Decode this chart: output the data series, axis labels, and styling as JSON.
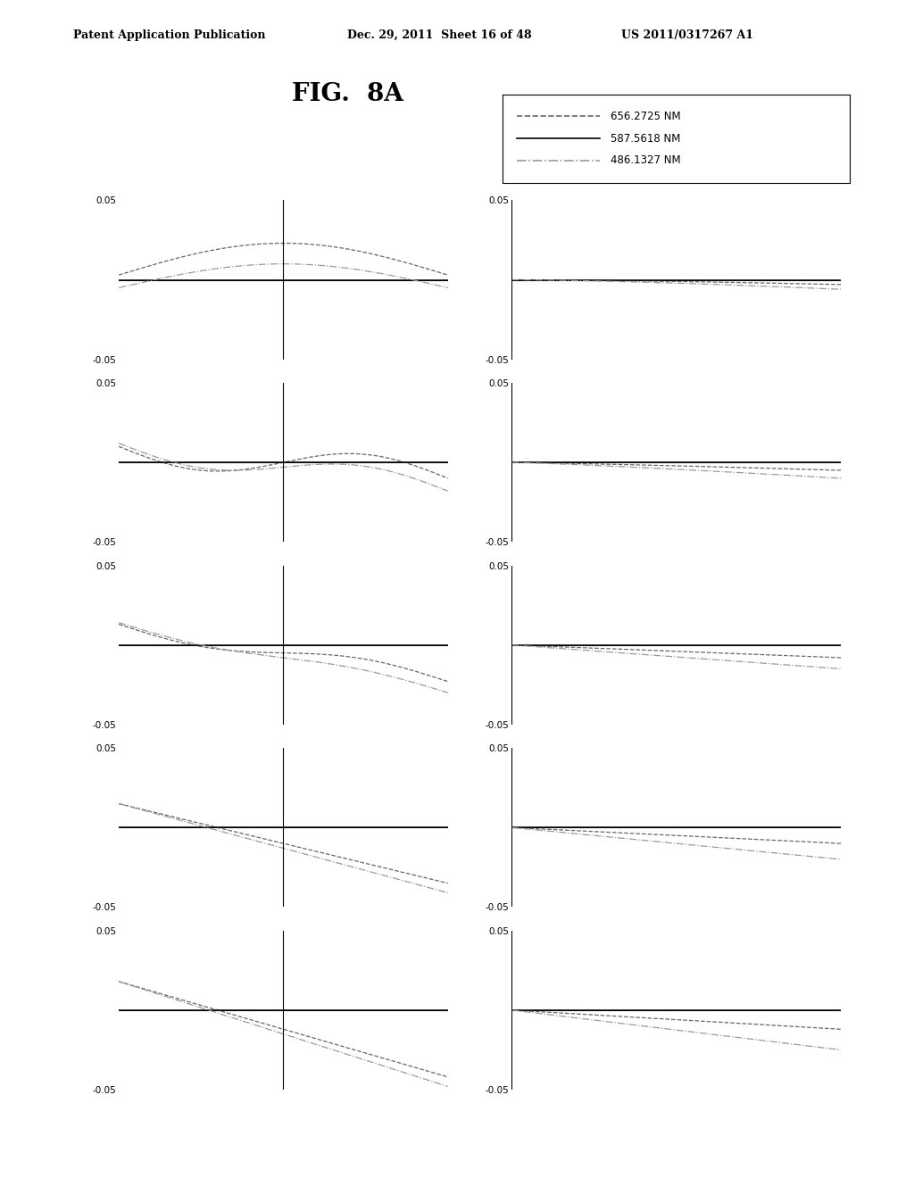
{
  "title": "FIG.  8A",
  "header_left": "Patent Application Publication",
  "header_center": "Dec. 29, 2011  Sheet 16 of 48",
  "header_right": "US 2011/0317267 A1",
  "legend_labels": [
    "656.2725 NM",
    "587.5618 NM",
    "486.1327 NM"
  ],
  "legend_styles": [
    "dashed",
    "solid",
    "dashdot"
  ],
  "legend_colors": [
    "#555555",
    "#000000",
    "#888888"
  ],
  "ylim": [
    -0.05,
    0.05
  ],
  "yticks": [
    0.05,
    -0.05
  ],
  "nrows": 5,
  "ncols": 2,
  "bg_color": "#ffffff",
  "text_color": "#000000"
}
